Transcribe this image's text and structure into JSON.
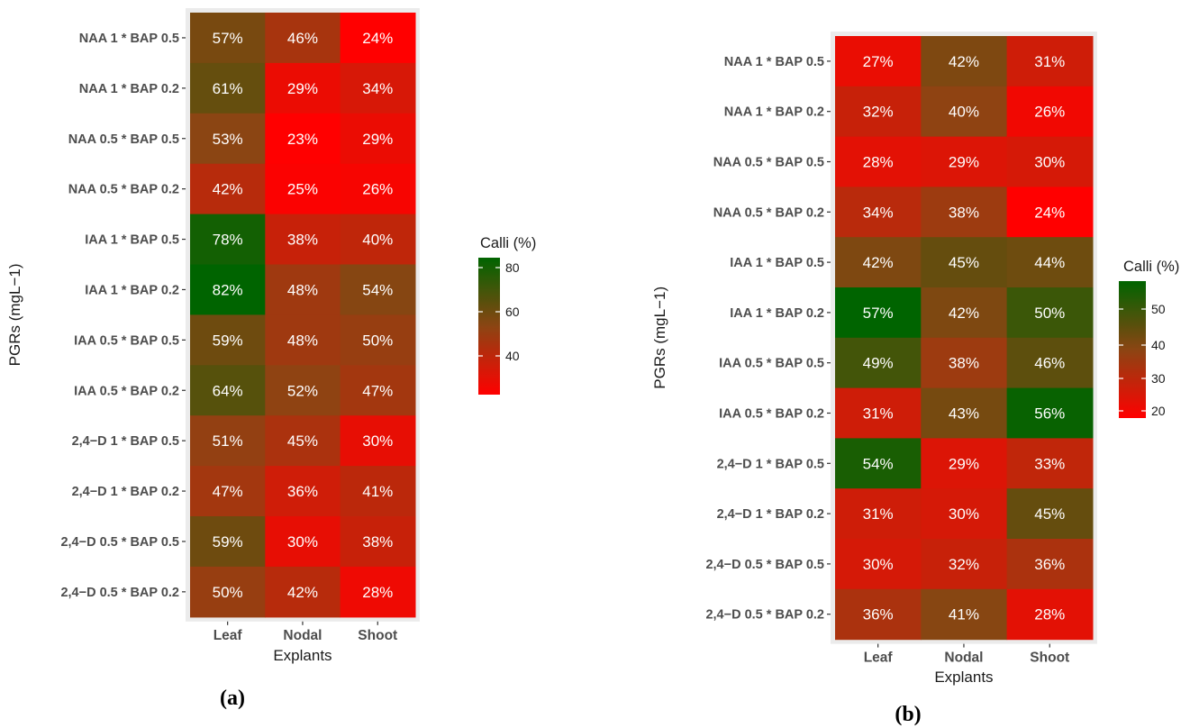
{
  "chart_data": [
    {
      "type": "heatmap",
      "caption": "(a)",
      "xlabel": "Explants",
      "ylabel": "PGRs (mgL−1)",
      "legend_title": "Calli (%)",
      "legend_placement": "right",
      "legend_ticks": [
        "80",
        "60",
        "40"
      ],
      "color_range": [
        24,
        82
      ],
      "colors": {
        "low": "#ff0000",
        "mid": "#8b4513",
        "high": "#006400"
      },
      "x": [
        "Leaf",
        "Nodal",
        "Shoot"
      ],
      "y": [
        "NAA 1 * BAP 0.5",
        "NAA 1 * BAP 0.2",
        "NAA 0.5 * BAP 0.5",
        "NAA 0.5 * BAP 0.2",
        "IAA 1 * BAP 0.5",
        "IAA 1 * BAP 0.2",
        "IAA 0.5 * BAP 0.5",
        "IAA 0.5 * BAP 0.2",
        "2,4−D 1 * BAP 0.5",
        "2,4−D 1 * BAP 0.2",
        "2,4−D 0.5 * BAP 0.5",
        "2,4−D 0.5 * BAP 0.2"
      ],
      "values": [
        [
          57,
          46,
          24
        ],
        [
          61,
          29,
          34
        ],
        [
          53,
          23,
          29
        ],
        [
          42,
          25,
          26
        ],
        [
          78,
          38,
          40
        ],
        [
          82,
          48,
          54
        ],
        [
          59,
          48,
          50
        ],
        [
          64,
          52,
          47
        ],
        [
          51,
          45,
          30
        ],
        [
          47,
          36,
          41
        ],
        [
          59,
          30,
          38
        ],
        [
          50,
          42,
          28
        ]
      ],
      "labels": [
        [
          "57%",
          "46%",
          "24%"
        ],
        [
          "61%",
          "29%",
          "34%"
        ],
        [
          "53%",
          "23%",
          "29%"
        ],
        [
          "42%",
          "25%",
          "26%"
        ],
        [
          "78%",
          "38%",
          "40%"
        ],
        [
          "82%",
          "48%",
          "54%"
        ],
        [
          "59%",
          "48%",
          "50%"
        ],
        [
          "64%",
          "52%",
          "47%"
        ],
        [
          "51%",
          "45%",
          "30%"
        ],
        [
          "47%",
          "36%",
          "41%"
        ],
        [
          "59%",
          "30%",
          "38%"
        ],
        [
          "50%",
          "42%",
          "28%"
        ]
      ]
    },
    {
      "type": "heatmap",
      "caption": "(b)",
      "xlabel": "Explants",
      "ylabel": "PGRs (mgL−1)",
      "legend_title": "Calli (%)",
      "legend_placement": "right",
      "legend_ticks": [
        "50",
        "40",
        "30",
        "20"
      ],
      "color_range": [
        24,
        57
      ],
      "colors": {
        "low": "#ff0000",
        "mid": "#8b4513",
        "high": "#006400"
      },
      "x": [
        "Leaf",
        "Nodal",
        "Shoot"
      ],
      "y": [
        "NAA 1 * BAP 0.5",
        "NAA 1 * BAP 0.2",
        "NAA 0.5 * BAP 0.5",
        "NAA 0.5 * BAP 0.2",
        "IAA 1 * BAP 0.5",
        "IAA 1 * BAP 0.2",
        "IAA 0.5 * BAP 0.5",
        "IAA 0.5 * BAP 0.2",
        "2,4−D 1 * BAP 0.5",
        "2,4−D 1 * BAP 0.2",
        "2,4−D 0.5 * BAP 0.5",
        "2,4−D 0.5 * BAP 0.2"
      ],
      "values": [
        [
          27,
          42,
          31
        ],
        [
          32,
          40,
          26
        ],
        [
          28,
          29,
          30
        ],
        [
          34,
          38,
          24
        ],
        [
          42,
          45,
          44
        ],
        [
          57,
          42,
          50
        ],
        [
          49,
          38,
          46
        ],
        [
          31,
          43,
          56
        ],
        [
          54,
          29,
          33
        ],
        [
          31,
          30,
          45
        ],
        [
          30,
          32,
          36
        ],
        [
          36,
          41,
          28
        ]
      ],
      "labels": [
        [
          "27%",
          "42%",
          "31%"
        ],
        [
          "32%",
          "40%",
          "26%"
        ],
        [
          "28%",
          "29%",
          "30%"
        ],
        [
          "34%",
          "38%",
          "24%"
        ],
        [
          "42%",
          "45%",
          "44%"
        ],
        [
          "57%",
          "42%",
          "50%"
        ],
        [
          "49%",
          "38%",
          "46%"
        ],
        [
          "31%",
          "43%",
          "56%"
        ],
        [
          "54%",
          "29%",
          "33%"
        ],
        [
          "31%",
          "30%",
          "45%"
        ],
        [
          "30%",
          "32%",
          "36%"
        ],
        [
          "36%",
          "41%",
          "28%"
        ]
      ]
    }
  ]
}
